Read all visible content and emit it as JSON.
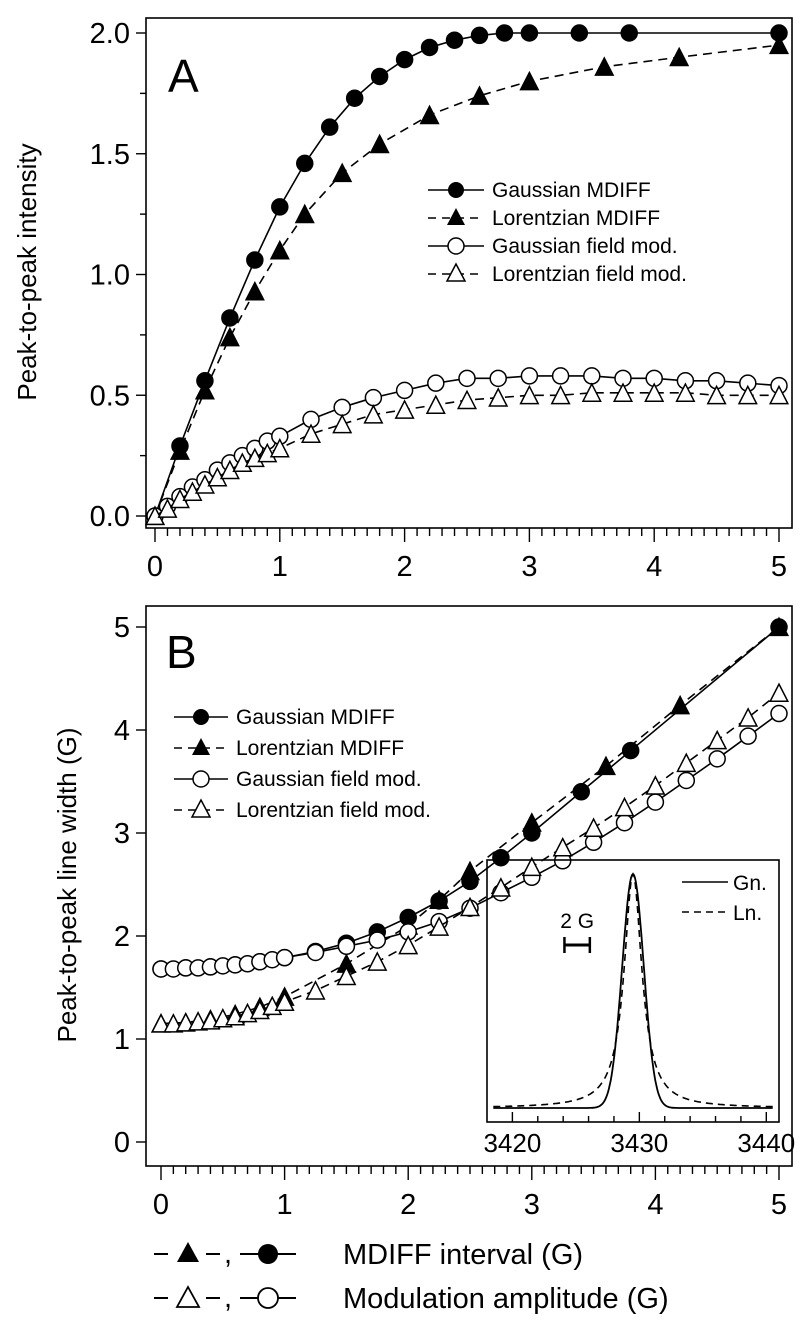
{
  "chart_data": [
    {
      "panel": "A",
      "type": "line",
      "ylabel": "Peak-to-peak intensity",
      "xlim": [
        0,
        5
      ],
      "ylim": [
        0,
        2.0
      ],
      "x_ticks": [
        "0",
        "1",
        "2",
        "3",
        "4",
        "5"
      ],
      "y_ticks": [
        "0.0",
        "0.5",
        "1.0",
        "1.5",
        "2.0"
      ],
      "legend_position": "right",
      "series": [
        {
          "name": "Gaussian MDIFF",
          "marker": "filled-circle",
          "line": "solid",
          "x": [
            0,
            0.2,
            0.4,
            0.6,
            0.8,
            1.0,
            1.2,
            1.4,
            1.6,
            1.8,
            2.0,
            2.2,
            2.4,
            2.6,
            2.8,
            3.0,
            3.4,
            3.8,
            5.0
          ],
          "y": [
            0,
            0.29,
            0.56,
            0.82,
            1.06,
            1.28,
            1.46,
            1.61,
            1.73,
            1.82,
            1.89,
            1.94,
            1.97,
            1.99,
            2.0,
            2.0,
            2.0,
            2.0,
            2.0
          ]
        },
        {
          "name": "Lorentzian MDIFF",
          "marker": "filled-triangle",
          "line": "dashed",
          "x": [
            0,
            0.2,
            0.4,
            0.6,
            0.8,
            1.0,
            1.2,
            1.5,
            1.8,
            2.2,
            2.6,
            3.0,
            3.6,
            4.2,
            5.0
          ],
          "y": [
            0,
            0.27,
            0.52,
            0.74,
            0.93,
            1.1,
            1.25,
            1.42,
            1.54,
            1.66,
            1.74,
            1.8,
            1.86,
            1.9,
            1.95
          ]
        },
        {
          "name": "Gaussian field mod.",
          "marker": "open-circle",
          "line": "solid",
          "x": [
            0,
            0.1,
            0.2,
            0.3,
            0.4,
            0.5,
            0.6,
            0.7,
            0.8,
            0.9,
            1.0,
            1.25,
            1.5,
            1.75,
            2.0,
            2.25,
            2.5,
            2.75,
            3.0,
            3.25,
            3.5,
            3.75,
            4.0,
            4.25,
            4.5,
            4.75,
            5.0
          ],
          "y": [
            0,
            0.04,
            0.08,
            0.12,
            0.15,
            0.19,
            0.22,
            0.25,
            0.28,
            0.31,
            0.33,
            0.4,
            0.45,
            0.49,
            0.52,
            0.55,
            0.57,
            0.57,
            0.58,
            0.58,
            0.58,
            0.57,
            0.57,
            0.56,
            0.56,
            0.55,
            0.54
          ]
        },
        {
          "name": "Lorentzian field mod.",
          "marker": "open-triangle",
          "line": "dashed",
          "x": [
            0,
            0.1,
            0.2,
            0.3,
            0.4,
            0.5,
            0.6,
            0.7,
            0.8,
            0.9,
            1.0,
            1.25,
            1.5,
            1.75,
            2.0,
            2.25,
            2.5,
            2.75,
            3.0,
            3.25,
            3.5,
            3.75,
            4.0,
            4.25,
            4.5,
            4.75,
            5.0
          ],
          "y": [
            0,
            0.03,
            0.07,
            0.1,
            0.13,
            0.16,
            0.19,
            0.22,
            0.24,
            0.26,
            0.28,
            0.34,
            0.38,
            0.42,
            0.44,
            0.46,
            0.48,
            0.49,
            0.5,
            0.5,
            0.51,
            0.51,
            0.51,
            0.51,
            0.5,
            0.5,
            0.5
          ]
        }
      ]
    },
    {
      "panel": "B",
      "type": "line",
      "ylabel": "Peak-to-peak line width (G)",
      "xlim": [
        0,
        5
      ],
      "ylim": [
        0,
        5
      ],
      "x_ticks": [
        "0",
        "1",
        "2",
        "3",
        "4",
        "5"
      ],
      "y_ticks": [
        "0",
        "1",
        "2",
        "3",
        "4",
        "5"
      ],
      "legend_position": "top-left",
      "series": [
        {
          "name": "Gaussian MDIFF",
          "marker": "filled-circle",
          "line": "solid",
          "x": [
            0,
            0.2,
            0.4,
            0.6,
            0.8,
            1.0,
            1.25,
            1.5,
            1.75,
            2.0,
            2.25,
            2.5,
            2.75,
            3.0,
            3.4,
            3.8,
            5.0
          ],
          "y": [
            1.68,
            1.69,
            1.7,
            1.72,
            1.75,
            1.79,
            1.85,
            1.93,
            2.04,
            2.18,
            2.34,
            2.53,
            2.76,
            3.0,
            3.4,
            3.8,
            5.0
          ]
        },
        {
          "name": "Lorentzian MDIFF",
          "marker": "filled-triangle",
          "line": "dashed",
          "x": [
            0,
            0.2,
            0.4,
            0.6,
            0.8,
            1.0,
            1.5,
            2.0,
            2.25,
            2.5,
            3.0,
            3.6,
            4.2,
            5.0
          ],
          "y": [
            1.15,
            1.16,
            1.19,
            1.24,
            1.31,
            1.41,
            1.73,
            2.1,
            2.35,
            2.63,
            3.1,
            3.65,
            4.24,
            5.0
          ]
        },
        {
          "name": "Gaussian field mod.",
          "marker": "open-circle",
          "line": "solid",
          "x": [
            0,
            0.1,
            0.2,
            0.3,
            0.4,
            0.5,
            0.6,
            0.7,
            0.8,
            0.9,
            1.0,
            1.25,
            1.5,
            1.75,
            2.0,
            2.25,
            2.5,
            2.75,
            3.0,
            3.25,
            3.5,
            3.75,
            4.0,
            4.25,
            4.5,
            4.75,
            5.0
          ],
          "y": [
            1.68,
            1.68,
            1.69,
            1.69,
            1.7,
            1.71,
            1.72,
            1.73,
            1.75,
            1.77,
            1.79,
            1.84,
            1.9,
            1.96,
            2.04,
            2.14,
            2.27,
            2.42,
            2.57,
            2.73,
            2.91,
            3.1,
            3.3,
            3.51,
            3.72,
            3.94,
            4.16
          ]
        },
        {
          "name": "Lorentzian field mod.",
          "marker": "open-triangle",
          "line": "dashed",
          "x": [
            0,
            0.1,
            0.2,
            0.3,
            0.4,
            0.5,
            0.6,
            0.7,
            0.8,
            0.9,
            1.0,
            1.25,
            1.5,
            1.75,
            2.0,
            2.25,
            2.5,
            2.75,
            3.0,
            3.25,
            3.5,
            3.75,
            4.0,
            4.25,
            4.5,
            4.75,
            5.0
          ],
          "y": [
            1.15,
            1.15,
            1.16,
            1.17,
            1.18,
            1.2,
            1.22,
            1.25,
            1.28,
            1.32,
            1.36,
            1.47,
            1.61,
            1.75,
            1.91,
            2.09,
            2.28,
            2.47,
            2.67,
            2.86,
            3.05,
            3.25,
            3.46,
            3.68,
            3.9,
            4.12,
            4.36
          ]
        }
      ],
      "inset": {
        "type": "line",
        "xlim": [
          3418,
          3441
        ],
        "x_ticks": [
          "3420",
          "3430",
          "3440"
        ],
        "legend": [
          {
            "name": "Gn.",
            "line": "solid"
          },
          {
            "name": "Ln.",
            "line": "dashed"
          }
        ],
        "scale_bar_label": "2 G",
        "scale_bar_G": 2,
        "center_G": 3429.5,
        "gaussian_sigma_G": 0.85,
        "lorentzian_gamma_G": 0.85
      }
    }
  ],
  "shared_xlabel": {
    "line1_markers": "-▲-, —●—",
    "line1_text": "MDIFF interval (G)",
    "line2_markers": "-△-, —○—",
    "line2_text": "Modulation amplitude (G)"
  }
}
